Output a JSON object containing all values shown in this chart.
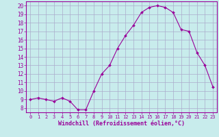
{
  "hours": [
    0,
    1,
    2,
    3,
    4,
    5,
    6,
    7,
    8,
    9,
    10,
    11,
    12,
    13,
    14,
    15,
    16,
    17,
    18,
    19,
    20,
    21,
    22,
    23
  ],
  "values": [
    9.0,
    9.2,
    9.0,
    8.8,
    9.2,
    8.8,
    7.8,
    7.8,
    10.0,
    12.0,
    13.0,
    15.0,
    16.5,
    17.7,
    19.2,
    19.8,
    20.0,
    19.8,
    19.2,
    17.2,
    17.0,
    14.5,
    13.0,
    10.5
  ],
  "line_color": "#990099",
  "marker": "D",
  "marker_size": 2.0,
  "bg_color": "#c8ecec",
  "grid_color": "#aaaacc",
  "xlabel": "Windchill (Refroidissement éolien,°C)",
  "xlabel_color": "#990099",
  "tick_color": "#990099",
  "ylim": [
    7.5,
    20.5
  ],
  "yticks": [
    8,
    9,
    10,
    11,
    12,
    13,
    14,
    15,
    16,
    17,
    18,
    19,
    20
  ],
  "xlim": [
    -0.5,
    23.5
  ],
  "xticks": [
    0,
    1,
    2,
    3,
    4,
    5,
    6,
    7,
    8,
    9,
    10,
    11,
    12,
    13,
    14,
    15,
    16,
    17,
    18,
    19,
    20,
    21,
    22,
    23
  ],
  "xtick_labels": [
    "0",
    "1",
    "2",
    "3",
    "4",
    "5",
    "6",
    "7",
    "8",
    "9",
    "10",
    "11",
    "12",
    "13",
    "14",
    "15",
    "16",
    "17",
    "18",
    "19",
    "20",
    "21",
    "22",
    "23"
  ]
}
